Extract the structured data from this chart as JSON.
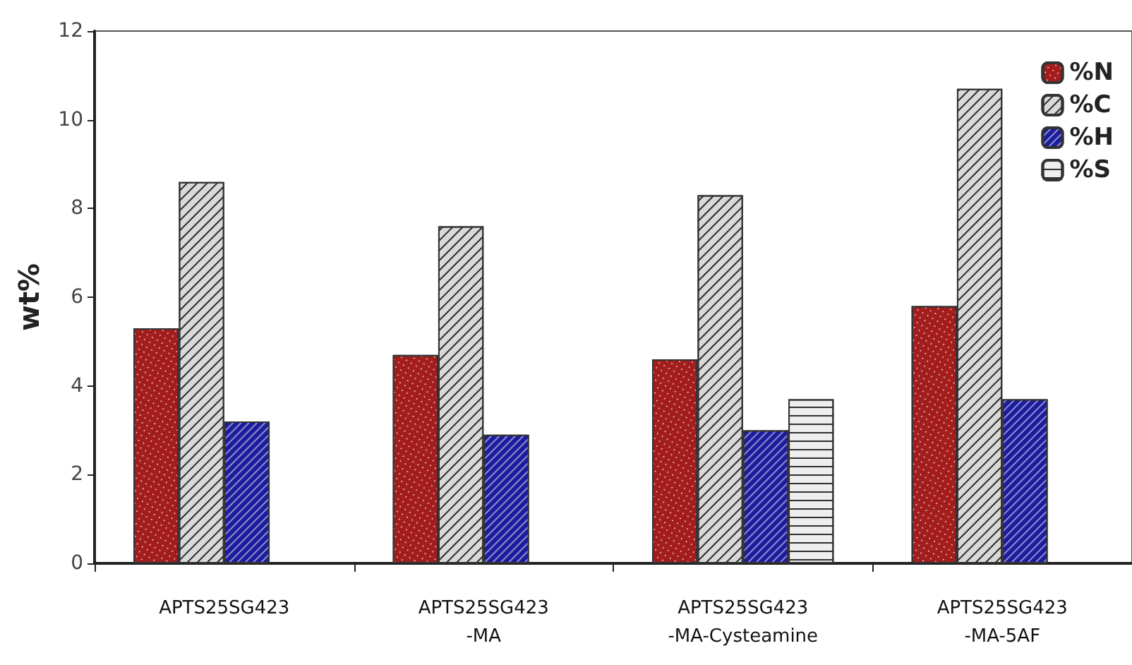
{
  "chart_data": {
    "type": "bar",
    "ylabel": "wt%",
    "categories": [
      "APTS25SG423",
      "APTS25SG423\n-MA",
      "APTS25SG423\n-MA-Cysteamine",
      "APTS25SG423\n-MA-5AF"
    ],
    "series": [
      {
        "name": "%N",
        "color": "#a31d1d",
        "values": [
          5.3,
          4.7,
          4.6,
          5.8
        ]
      },
      {
        "name": "%C",
        "color": "#d9d9d9",
        "values": [
          8.6,
          7.6,
          8.3,
          10.7
        ]
      },
      {
        "name": "%H",
        "color": "#1c1c9e",
        "values": [
          3.2,
          2.9,
          3.0,
          3.7
        ]
      },
      {
        "name": "%S",
        "color": "#eeeeee",
        "values": [
          null,
          null,
          3.7,
          null
        ]
      }
    ],
    "ylim": [
      0,
      12
    ],
    "yticks": [
      0,
      2,
      4,
      6,
      8,
      10,
      12
    ],
    "grid": false,
    "legend": "top right"
  }
}
